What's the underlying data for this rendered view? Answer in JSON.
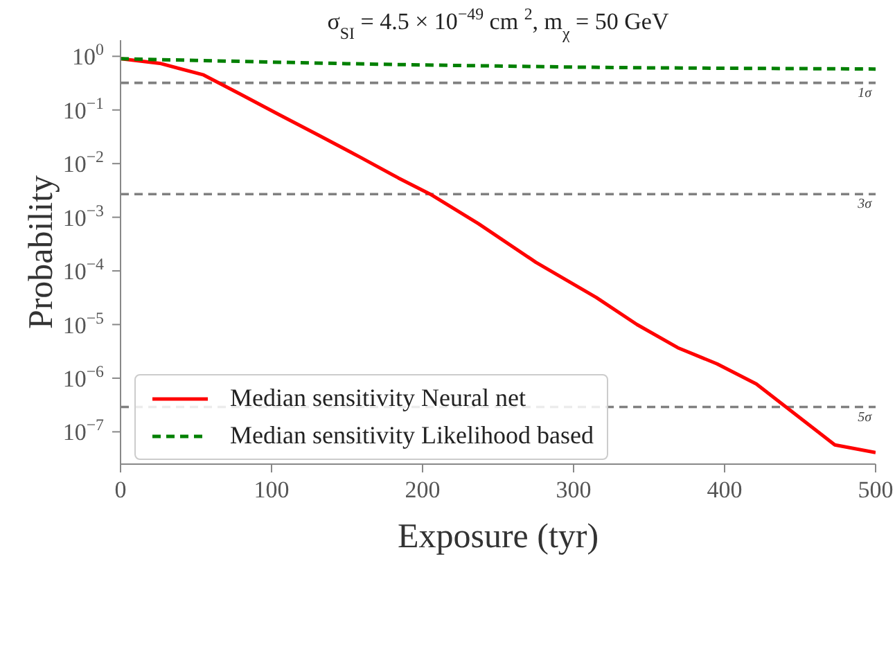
{
  "chart_data": {
    "type": "line",
    "title": "σ$_{SI}$ = 4.5 × 10$^{−49}$ cm $^{2}$, m$_{χ}$ = 50 GeV",
    "xlabel": "Exposure (tyr)",
    "ylabel": "Probability",
    "log": "y",
    "xlim": [
      0,
      500
    ],
    "xticks": [
      0,
      100,
      200,
      300,
      400,
      500
    ],
    "ylim": [
      2.5e-08,
      2
    ],
    "yticks": [
      {
        "value": 1,
        "label": "10$^{0}$"
      },
      {
        "value": 0.1,
        "label": "10$^{−1}$"
      },
      {
        "value": 0.01,
        "label": "10$^{−2}$"
      },
      {
        "value": 0.001,
        "label": "10$^{−3}$"
      },
      {
        "value": 0.0001,
        "label": "10$^{−4}$"
      },
      {
        "value": 1e-05,
        "label": "10$^{−5}$"
      },
      {
        "value": 1e-06,
        "label": "10$^{−6}$"
      },
      {
        "value": 1e-07,
        "label": "10$^{−7}$"
      }
    ],
    "grid": false,
    "legend": "bottom left",
    "series": [
      {
        "name": "Median sensitivity Neural net",
        "color": "#ff0000",
        "line_style": "solid",
        "x": [
          0,
          26,
          55,
          79,
          105,
          131,
          158,
          184,
          205,
          237,
          275,
          315,
          342,
          369,
          395,
          421,
          473,
          500
        ],
        "values": [
          0.9,
          0.74,
          0.45,
          0.2,
          0.082,
          0.034,
          0.0135,
          0.0054,
          0.0027,
          0.00076,
          0.000145,
          3.2e-05,
          1e-05,
          3.7e-06,
          1.85e-06,
          7.8e-07,
          5.7e-08,
          4.1e-08
        ]
      },
      {
        "name": "Median sensitivity Likelihood based",
        "color": "#008000",
        "line_style": "dashed",
        "x": [
          0,
          50,
          100,
          150,
          200,
          250,
          300,
          350,
          400,
          450,
          500
        ],
        "values": [
          0.9,
          0.84,
          0.78,
          0.73,
          0.69,
          0.66,
          0.63,
          0.61,
          0.6,
          0.59,
          0.58
        ]
      }
    ],
    "ref_lines": [
      {
        "axis": "y",
        "value": 0.32,
        "label": "1σ",
        "color": "#808080",
        "line_style": "dashed"
      },
      {
        "axis": "y",
        "value": 0.0027,
        "label": "3σ",
        "color": "#808080",
        "line_style": "dashed"
      },
      {
        "axis": "y",
        "value": 2.9e-07,
        "label": "5σ",
        "color": "#808080",
        "line_style": "dashed"
      }
    ]
  }
}
